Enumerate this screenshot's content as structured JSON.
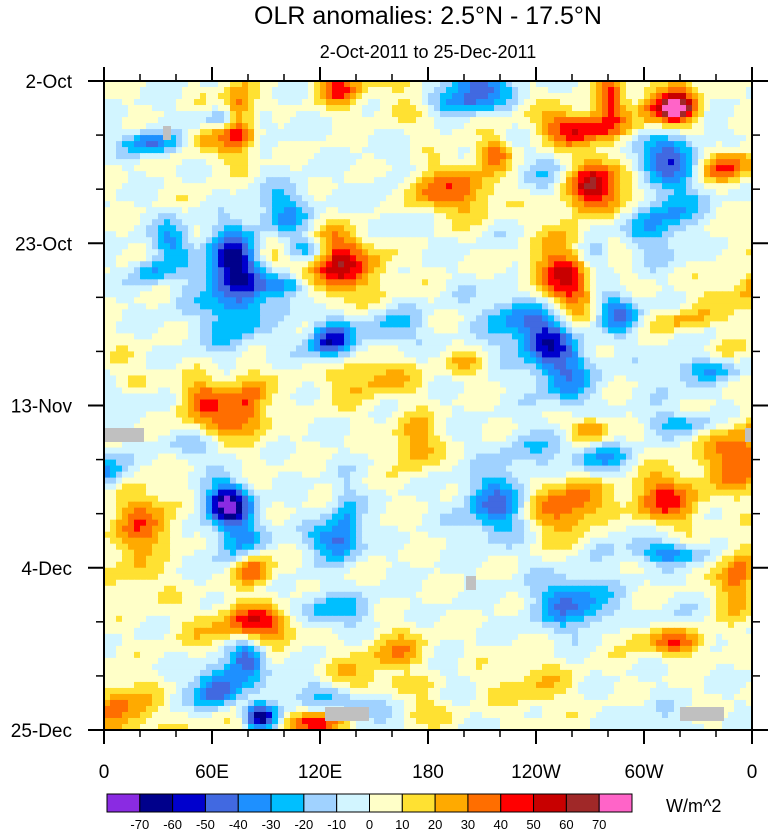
{
  "chart_data": {
    "type": "heatmap",
    "title": "OLR anomalies: 2.5°N - 17.5°N",
    "subtitle": "2-Oct-2011 to 25-Dec-2011",
    "x_ticks": [
      "0",
      "60E",
      "120E",
      "180",
      "120W",
      "60W",
      "0"
    ],
    "x_range": [
      0,
      360
    ],
    "y_ticks": [
      "2-Oct",
      "23-Oct",
      "13-Nov",
      "4-Dec",
      "25-Dec"
    ],
    "y_range": [
      "2-Oct-2011",
      "25-Dec-2011"
    ],
    "colorbar": {
      "unit_label": "W/m^2",
      "levels": [
        "-70",
        "-60",
        "-50",
        "-40",
        "-30",
        "-20",
        "-10",
        "0",
        "10",
        "20",
        "30",
        "40",
        "50",
        "60",
        "70"
      ],
      "colors": [
        "#8a2be2",
        "#00008b",
        "#0000cd",
        "#4169e1",
        "#1e90ff",
        "#00bfff",
        "#a0d2ff",
        "#d2f5ff",
        "#ffffc8",
        "#ffe132",
        "#ffaa00",
        "#ff6e00",
        "#ff0000",
        "#c80000",
        "#a02828",
        "#ff64c8"
      ]
    },
    "missing_color": "#c0c0c0"
  }
}
